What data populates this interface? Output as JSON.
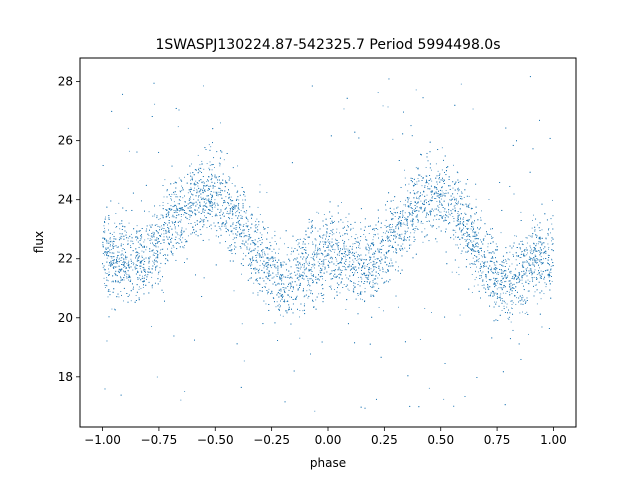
{
  "chart_data": {
    "type": "scatter",
    "title": "1SWASPJ130224.87-542325.7 Period 5994498.0s",
    "xlabel": "phase",
    "ylabel": "flux",
    "xlim": [
      -1.1,
      1.1
    ],
    "ylim": [
      16.3,
      28.8
    ],
    "xticks": [
      -1.0,
      -0.75,
      -0.5,
      -0.25,
      0.0,
      0.25,
      0.5,
      0.75,
      1.0
    ],
    "xtick_labels": [
      "−1.00",
      "−0.75",
      "−0.50",
      "−0.25",
      "0.00",
      "0.25",
      "0.50",
      "0.75",
      "1.00"
    ],
    "yticks": [
      18,
      20,
      22,
      24,
      26,
      28
    ],
    "ytick_labels": [
      "18",
      "20",
      "22",
      "24",
      "26",
      "28"
    ],
    "grid": false,
    "legend": "none",
    "marker_color": "#1f77b4",
    "series": [
      {
        "trend": {
          "phase": [
            -1.0,
            -0.9,
            -0.8,
            -0.7,
            -0.6,
            -0.5,
            -0.4,
            -0.3,
            -0.2,
            -0.1,
            0.0,
            0.1,
            0.2,
            0.3,
            0.4,
            0.5,
            0.6,
            0.7,
            0.8,
            0.9,
            1.0
          ],
          "flux": [
            22.1,
            21.9,
            22.0,
            23.2,
            24.0,
            24.2,
            23.3,
            22.0,
            21.0,
            21.8,
            22.0,
            21.9,
            21.8,
            23.0,
            24.0,
            24.1,
            23.2,
            21.8,
            21.0,
            21.9,
            22.1
          ]
        },
        "scatter_sd": 0.9,
        "outlier_range": [
          16.8,
          28.2
        ],
        "point_count": 9000
      }
    ]
  }
}
